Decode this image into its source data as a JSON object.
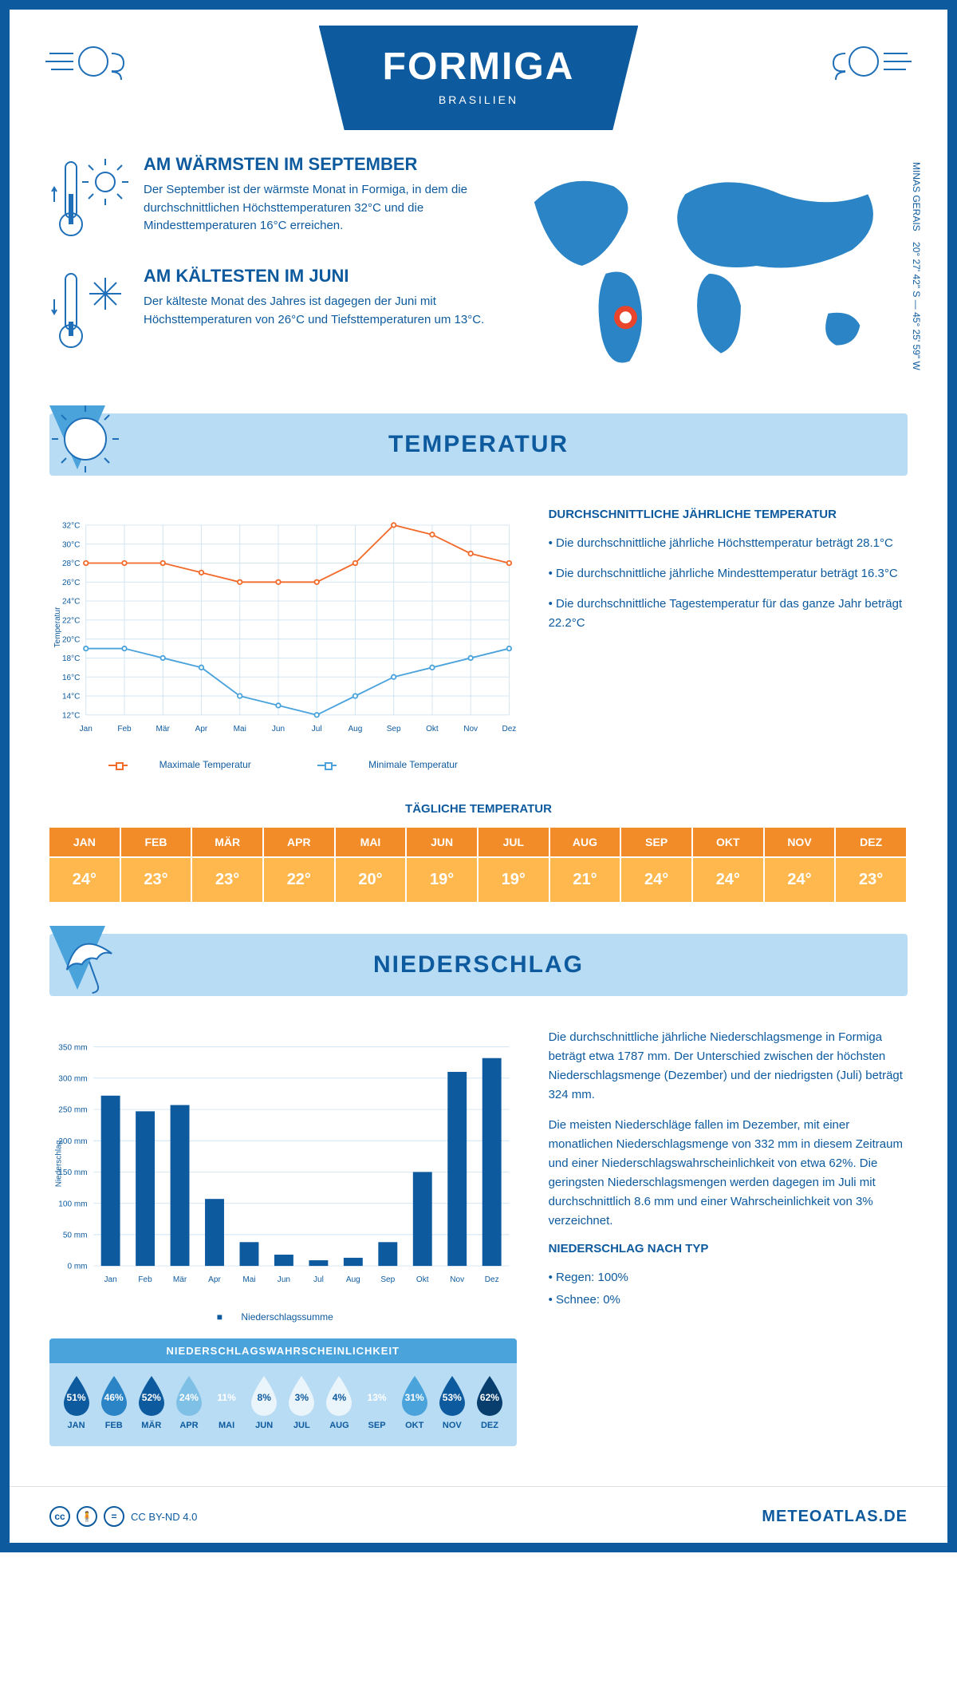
{
  "header": {
    "title": "FORMIGA",
    "country": "BRASILIEN"
  },
  "location": {
    "region": "MINAS GERAIS",
    "coords": "20° 27' 42\" S — 45° 25' 59\" W"
  },
  "warmest": {
    "title": "AM WÄRMSTEN IM SEPTEMBER",
    "text": "Der September ist der wärmste Monat in Formiga, in dem die durchschnittlichen Höchsttemperaturen 32°C und die Mindesttemperaturen 16°C erreichen."
  },
  "coldest": {
    "title": "AM KÄLTESTEN IM JUNI",
    "text": "Der kälteste Monat des Jahres ist dagegen der Juni mit Höchsttemperaturen von 26°C und Tiefsttemperaturen um 13°C."
  },
  "temp_section": {
    "banner": "TEMPERATUR",
    "info_title": "DURCHSCHNITTLICHE JÄHRLICHE TEMPERATUR",
    "bullets": [
      "• Die durchschnittliche jährliche Höchsttemperatur beträgt 28.1°C",
      "• Die durchschnittliche jährliche Mindesttemperatur beträgt 16.3°C",
      "• Die durchschnittliche Tagestemperatur für das ganze Jahr beträgt 22.2°C"
    ],
    "legend_max": "Maximale Temperatur",
    "legend_min": "Minimale Temperatur",
    "daily_title": "TÄGLICHE TEMPERATUR"
  },
  "temp_chart": {
    "type": "line",
    "months": [
      "Jan",
      "Feb",
      "Mär",
      "Apr",
      "Mai",
      "Jun",
      "Jul",
      "Aug",
      "Sep",
      "Okt",
      "Nov",
      "Dez"
    ],
    "max_series": [
      28,
      28,
      28,
      27,
      26,
      26,
      26,
      28,
      32,
      31,
      29,
      28
    ],
    "min_series": [
      19,
      19,
      18,
      17,
      14,
      13,
      12,
      14,
      16,
      17,
      18,
      19
    ],
    "max_color": "#f26a2a",
    "min_color": "#4ba3dc",
    "ylabel": "Temperatur",
    "ylim": [
      12,
      32
    ],
    "ytick_step": 2,
    "line_width": 2,
    "marker_radius": 3,
    "grid_color": "#d0e4f2",
    "background_color": "#ffffff",
    "label_fontsize": 11
  },
  "daily_temp": {
    "months": [
      "JAN",
      "FEB",
      "MÄR",
      "APR",
      "MAI",
      "JUN",
      "JUL",
      "AUG",
      "SEP",
      "OKT",
      "NOV",
      "DEZ"
    ],
    "values": [
      "24°",
      "23°",
      "23°",
      "22°",
      "20°",
      "19°",
      "19°",
      "21°",
      "24°",
      "24°",
      "24°",
      "23°"
    ],
    "header_bg": "#f28c28",
    "cell_bg": "#ffb84d",
    "text_color": "#ffffff"
  },
  "precip_section": {
    "banner": "NIEDERSCHLAG",
    "para1": "Die durchschnittliche jährliche Niederschlagsmenge in Formiga beträgt etwa 1787 mm. Der Unterschied zwischen der höchsten Niederschlagsmenge (Dezember) und der niedrigsten (Juli) beträgt 324 mm.",
    "para2": "Die meisten Niederschläge fallen im Dezember, mit einer monatlichen Niederschlagsmenge von 332 mm in diesem Zeitraum und einer Niederschlagswahrscheinlichkeit von etwa 62%. Die geringsten Niederschlagsmengen werden dagegen im Juli mit durchschnittlich 8.6 mm und einer Wahrscheinlichkeit von 3% verzeichnet.",
    "type_title": "NIEDERSCHLAG NACH TYP",
    "type_rain": "• Regen: 100%",
    "type_snow": "• Schnee: 0%"
  },
  "precip_chart": {
    "type": "bar",
    "months": [
      "Jan",
      "Feb",
      "Mär",
      "Apr",
      "Mai",
      "Jun",
      "Jul",
      "Aug",
      "Sep",
      "Okt",
      "Nov",
      "Dez"
    ],
    "values": [
      272,
      247,
      257,
      107,
      38,
      18,
      9,
      13,
      38,
      150,
      310,
      332
    ],
    "bar_color": "#0d5a9e",
    "ylabel": "Niederschlag",
    "legend": "Niederschlagssumme",
    "ylim": [
      0,
      350
    ],
    "ytick_step": 50,
    "grid_color": "#d0e4f2",
    "bar_width": 0.55,
    "label_fontsize": 11
  },
  "prob": {
    "title": "NIEDERSCHLAGSWAHRSCHEINLICHKEIT",
    "months": [
      "JAN",
      "FEB",
      "MÄR",
      "APR",
      "MAI",
      "JUN",
      "JUL",
      "AUG",
      "SEP",
      "OKT",
      "NOV",
      "DEZ"
    ],
    "values": [
      51,
      46,
      52,
      24,
      11,
      8,
      3,
      4,
      13,
      31,
      53,
      62
    ],
    "box_bg": "#b8dcf4",
    "header_bg": "#4ba3dc",
    "drop_text_default": "#ffffff",
    "drop_text_light": "#0d5a9e",
    "colors_scale": {
      "0": "#eaf4fb",
      "10": "#b8dcf4",
      "20": "#7fc1e6",
      "30": "#4ba3dc",
      "40": "#2a84c5",
      "50": "#0d5a9e",
      "60": "#073e6e"
    }
  },
  "footer": {
    "license": "CC BY-ND 4.0",
    "site": "METEOATLAS.DE"
  }
}
